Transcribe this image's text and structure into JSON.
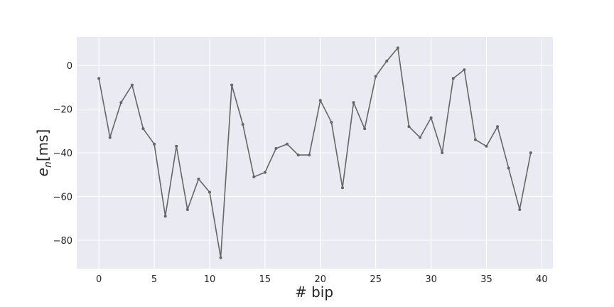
{
  "chart_data": {
    "type": "line",
    "title": "",
    "xlabel": "# bip",
    "ylabel_main": "e",
    "ylabel_sub": "n",
    "ylabel_unit": "[ms]",
    "xlim": [
      -2,
      41
    ],
    "ylim": [
      -93,
      13
    ],
    "xticks": [
      0,
      5,
      10,
      15,
      20,
      25,
      30,
      35,
      40
    ],
    "yticks": [
      0,
      -20,
      -40,
      -60,
      -80
    ],
    "ytick_labels": [
      "0",
      "−20",
      "−40",
      "−60",
      "−80"
    ],
    "grid": true,
    "background": "#eaeaf2",
    "line_color": "#666666",
    "series": [
      {
        "x": [
          0,
          1,
          2,
          3,
          4,
          5,
          6,
          7,
          8,
          9,
          10,
          11,
          12,
          13,
          14,
          15,
          16,
          17,
          18,
          19,
          20,
          21,
          22,
          23,
          24,
          25,
          26,
          27,
          28,
          29,
          30,
          31,
          32,
          33,
          34,
          35,
          36,
          37,
          38,
          39
        ],
        "values": [
          -6,
          -33,
          -17,
          -9,
          -29,
          -36,
          -69,
          -37,
          -66,
          -52,
          -58,
          -88,
          -9,
          -27,
          -51,
          -49,
          -38,
          -36,
          -41,
          -41,
          -16,
          -26,
          -56,
          -17,
          -29,
          -5,
          2,
          8,
          -28,
          -33,
          -24,
          -40,
          -6,
          -2,
          -34,
          -37,
          -28,
          -47,
          -66,
          -40
        ]
      }
    ]
  }
}
